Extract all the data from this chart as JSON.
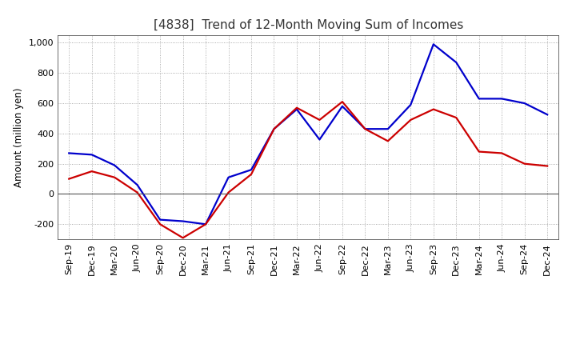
{
  "title": "[4838]  Trend of 12-Month Moving Sum of Incomes",
  "ylabel": "Amount (million yen)",
  "background_color": "#ffffff",
  "grid_color": "#999999",
  "xlabels": [
    "Sep-19",
    "Dec-19",
    "Mar-20",
    "Jun-20",
    "Sep-20",
    "Dec-20",
    "Mar-21",
    "Jun-21",
    "Sep-21",
    "Dec-21",
    "Mar-22",
    "Jun-22",
    "Sep-22",
    "Dec-22",
    "Mar-23",
    "Jun-23",
    "Sep-23",
    "Dec-23",
    "Mar-24",
    "Jun-24",
    "Sep-24",
    "Dec-24"
  ],
  "ordinary_income": [
    270,
    260,
    190,
    60,
    -170,
    -180,
    -200,
    110,
    160,
    430,
    560,
    360,
    580,
    430,
    430,
    590,
    990,
    870,
    630,
    630,
    600,
    525
  ],
  "net_income": [
    100,
    150,
    110,
    10,
    -200,
    -290,
    -200,
    10,
    130,
    430,
    570,
    490,
    610,
    430,
    350,
    490,
    560,
    505,
    280,
    270,
    200,
    185
  ],
  "ylim": [
    -300,
    1050
  ],
  "yticks": [
    -200,
    0,
    200,
    400,
    600,
    800,
    1000
  ],
  "ordinary_color": "#0000cc",
  "net_color": "#cc0000",
  "line_width": 1.6,
  "title_fontsize": 11,
  "title_color": "#333333",
  "label_fontsize": 8.5,
  "tick_fontsize": 8,
  "legend_fontsize": 9
}
